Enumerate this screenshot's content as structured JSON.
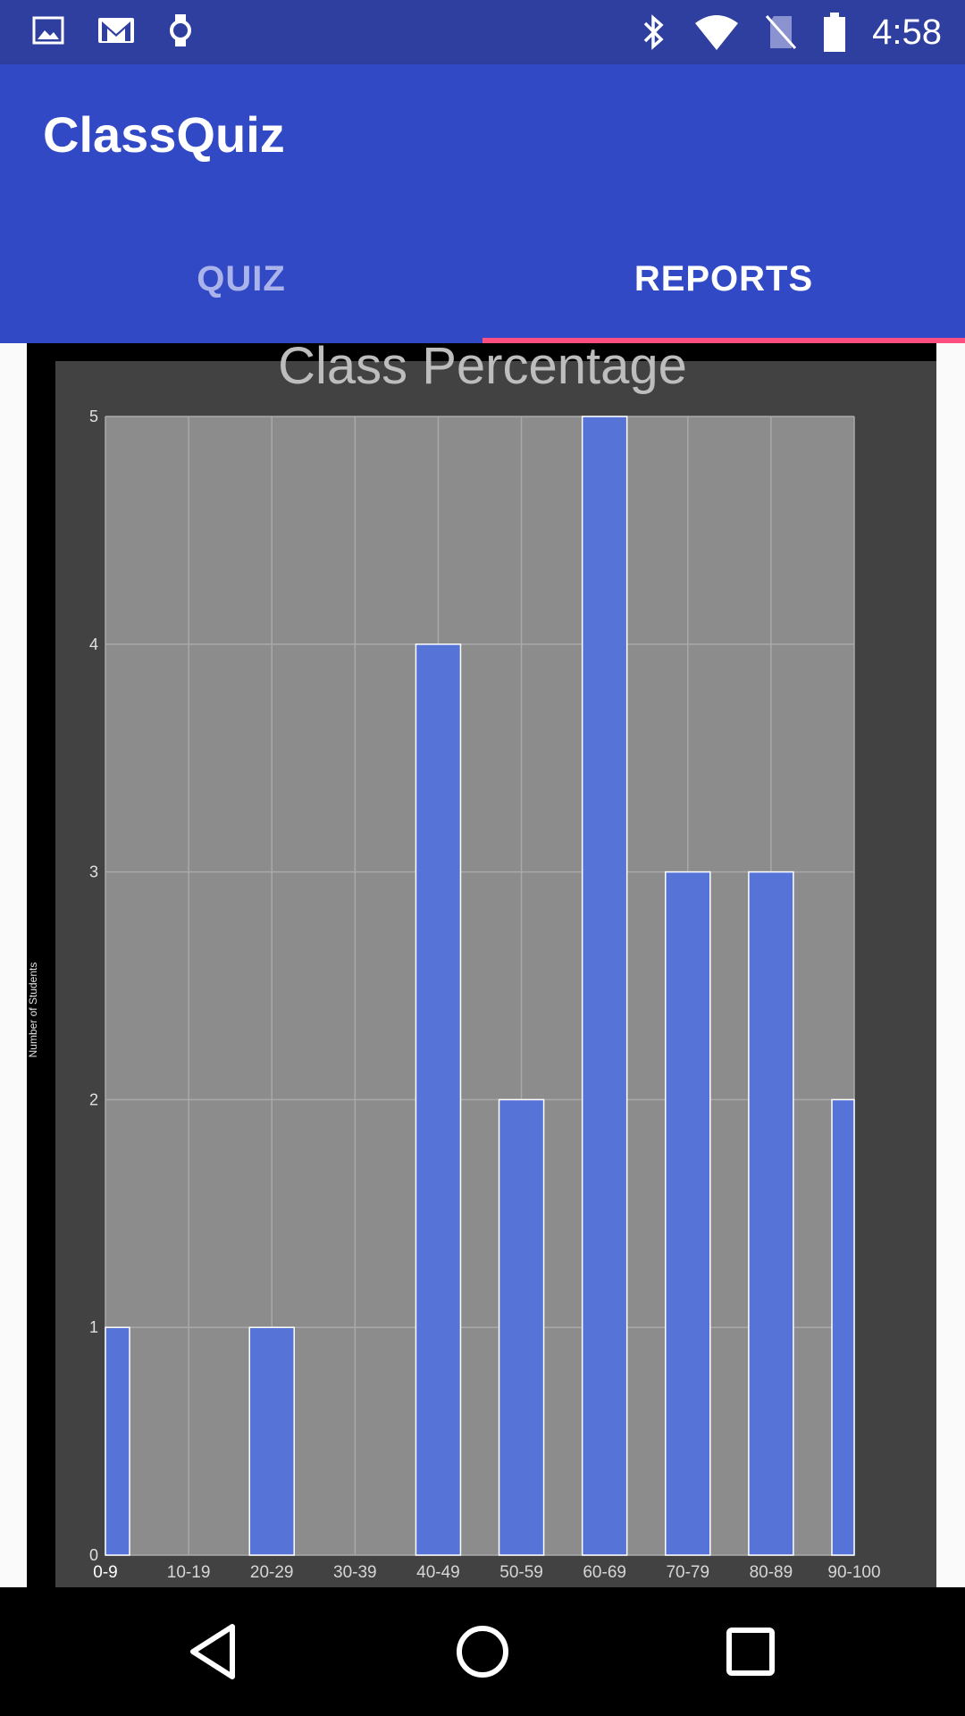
{
  "status_bar": {
    "time": "4:58",
    "left_icons": [
      "image-icon",
      "gmail-icon",
      "watch-icon"
    ],
    "right_icons": [
      "bluetooth-icon",
      "wifi-icon",
      "no-sim-icon",
      "battery-icon"
    ]
  },
  "app_bar": {
    "title": "ClassQuiz"
  },
  "tabs": [
    {
      "label": "QUIZ",
      "selected": false
    },
    {
      "label": "REPORTS",
      "selected": true
    }
  ],
  "colors": {
    "primary": "#3249c6",
    "status": "#2f3fa0",
    "accent": "#ff4f81",
    "bar": "#5673d8"
  },
  "chart_data": {
    "type": "bar",
    "title": "Class Percentage",
    "ylabel": "Number of Students",
    "xlabel": "",
    "categories": [
      "0-9",
      "10-19",
      "20-29",
      "30-39",
      "40-49",
      "50-59",
      "60-69",
      "70-79",
      "80-89",
      "90-100"
    ],
    "values": [
      1,
      0,
      1,
      0,
      4,
      2,
      5,
      3,
      3,
      2
    ],
    "ylim": [
      0,
      5
    ],
    "y_ticks": [
      "0",
      "1",
      "2",
      "3",
      "4",
      "5"
    ],
    "grid": true
  },
  "nav_bar": {
    "buttons": [
      "back-icon",
      "home-icon",
      "recents-icon"
    ]
  }
}
